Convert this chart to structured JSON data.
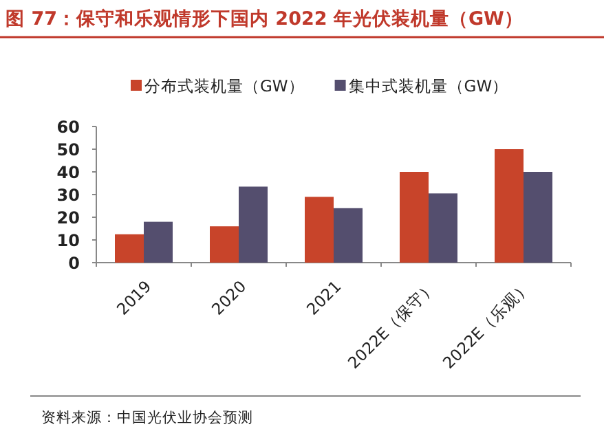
{
  "chart_data": {
    "type": "bar",
    "title": "图 77：保守和乐观情形下国内 2022 年光伏装机量（GW）",
    "categories": [
      "2019",
      "2020",
      "2021",
      "2022E（保守）",
      "2022E（乐观）"
    ],
    "series": [
      {
        "name": "分布式装机量（GW）",
        "color": "#c8442a",
        "values": [
          12.5,
          16,
          29,
          40,
          50
        ]
      },
      {
        "name": "集中式装机量（GW）",
        "color": "#544e6e",
        "values": [
          18,
          33.5,
          24,
          30.5,
          40
        ]
      }
    ],
    "ylim": [
      0,
      60
    ],
    "yticks": [
      0,
      10,
      20,
      30,
      40,
      50,
      60
    ],
    "legend": "top",
    "grid": false,
    "annotations": [
      "资料来源：中国光伏业协会预测"
    ]
  }
}
